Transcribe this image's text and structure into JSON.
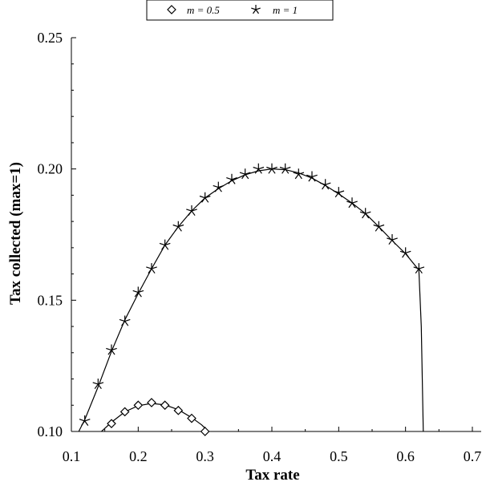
{
  "chart_data": {
    "type": "line",
    "title": "",
    "xlabel": "Tax rate",
    "ylabel": "Tax collected (max=1)",
    "xlim": [
      0.1,
      0.7
    ],
    "ylim": [
      0.1,
      0.25
    ],
    "x_ticks": [
      "0.1",
      "0.2",
      "0.3",
      "0.4",
      "0.5",
      "0.6",
      "0.7"
    ],
    "y_ticks": [
      "0.10",
      "0.15",
      "0.20",
      "0.25"
    ],
    "grid": false,
    "legend_position": "top-center",
    "legend": [
      "m = 0.5",
      "m = 1"
    ],
    "series": [
      {
        "name": "m = 0.5",
        "marker": "diamond",
        "curve": [
          [
            0.145,
            0.1
          ],
          [
            0.16,
            0.1035
          ],
          [
            0.18,
            0.1075
          ],
          [
            0.2,
            0.1098
          ],
          [
            0.22,
            0.1107
          ],
          [
            0.24,
            0.1101
          ],
          [
            0.26,
            0.1083
          ],
          [
            0.28,
            0.1053
          ],
          [
            0.295,
            0.1025
          ],
          [
            0.305,
            0.1
          ]
        ],
        "points": [
          [
            0.16,
            0.103
          ],
          [
            0.18,
            0.1075
          ],
          [
            0.2,
            0.11
          ],
          [
            0.22,
            0.111
          ],
          [
            0.24,
            0.11
          ],
          [
            0.26,
            0.108
          ],
          [
            0.28,
            0.105
          ],
          [
            0.3,
            0.1
          ]
        ]
      },
      {
        "name": "m = 1",
        "marker": "star",
        "curve": [
          [
            0.111,
            0.1
          ],
          [
            0.12,
            0.1045
          ],
          [
            0.14,
            0.117
          ],
          [
            0.16,
            0.1305
          ],
          [
            0.18,
            0.1425
          ],
          [
            0.2,
            0.1525
          ],
          [
            0.22,
            0.162
          ],
          [
            0.24,
            0.171
          ],
          [
            0.26,
            0.178
          ],
          [
            0.28,
            0.184
          ],
          [
            0.3,
            0.189
          ],
          [
            0.32,
            0.1925
          ],
          [
            0.34,
            0.1955
          ],
          [
            0.36,
            0.1978
          ],
          [
            0.38,
            0.1993
          ],
          [
            0.4,
            0.2
          ],
          [
            0.42,
            0.1997
          ],
          [
            0.44,
            0.1985
          ],
          [
            0.46,
            0.1965
          ],
          [
            0.48,
            0.1937
          ],
          [
            0.5,
            0.1905
          ],
          [
            0.52,
            0.187
          ],
          [
            0.54,
            0.183
          ],
          [
            0.56,
            0.178
          ],
          [
            0.58,
            0.1727
          ],
          [
            0.6,
            0.1677
          ],
          [
            0.62,
            0.1615
          ],
          [
            0.6235,
            0.14
          ],
          [
            0.6265,
            0.1
          ]
        ],
        "points": [
          [
            0.12,
            0.104
          ],
          [
            0.14,
            0.118
          ],
          [
            0.16,
            0.131
          ],
          [
            0.18,
            0.142
          ],
          [
            0.2,
            0.153
          ],
          [
            0.22,
            0.162
          ],
          [
            0.24,
            0.171
          ],
          [
            0.26,
            0.178
          ],
          [
            0.28,
            0.184
          ],
          [
            0.3,
            0.189
          ],
          [
            0.32,
            0.193
          ],
          [
            0.34,
            0.196
          ],
          [
            0.36,
            0.198
          ],
          [
            0.38,
            0.2
          ],
          [
            0.4,
            0.2
          ],
          [
            0.42,
            0.2
          ],
          [
            0.44,
            0.198
          ],
          [
            0.46,
            0.197
          ],
          [
            0.48,
            0.194
          ],
          [
            0.5,
            0.191
          ],
          [
            0.52,
            0.187
          ],
          [
            0.54,
            0.183
          ],
          [
            0.56,
            0.178
          ],
          [
            0.58,
            0.173
          ],
          [
            0.6,
            0.168
          ],
          [
            0.62,
            0.162
          ]
        ]
      }
    ]
  }
}
